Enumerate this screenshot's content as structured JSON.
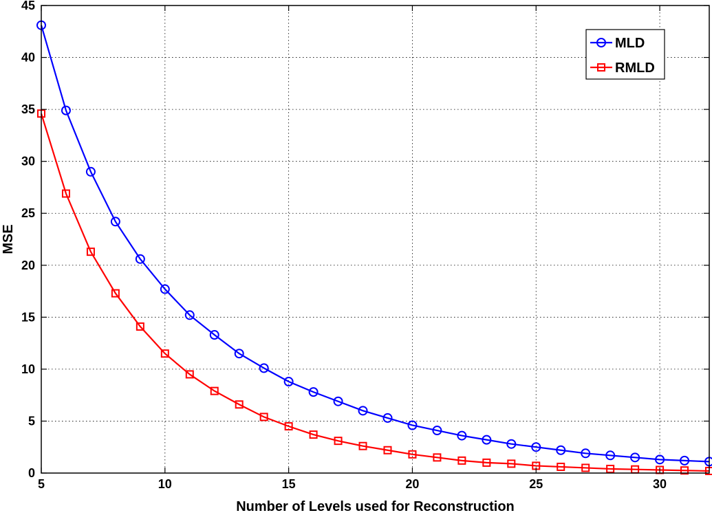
{
  "chart_data": {
    "type": "line",
    "title": "",
    "xlabel": "Number of Levels used for Reconstruction",
    "ylabel": "MSE",
    "xlim": [
      5,
      32
    ],
    "ylim": [
      0,
      45
    ],
    "xticks": [
      5,
      10,
      15,
      20,
      25,
      30
    ],
    "yticks": [
      0,
      5,
      10,
      15,
      20,
      25,
      30,
      35,
      40,
      45
    ],
    "grid": true,
    "legend_position": "top-right",
    "x": [
      5,
      6,
      7,
      8,
      9,
      10,
      11,
      12,
      13,
      14,
      15,
      16,
      17,
      18,
      19,
      20,
      21,
      22,
      23,
      24,
      25,
      26,
      27,
      28,
      29,
      30,
      31,
      32
    ],
    "series": [
      {
        "name": "MLD",
        "color": "#0000ff",
        "marker": "circle",
        "values": [
          43.1,
          34.9,
          29.0,
          24.2,
          20.6,
          17.7,
          15.2,
          13.3,
          11.5,
          10.1,
          8.8,
          7.8,
          6.9,
          6.0,
          5.3,
          4.6,
          4.1,
          3.6,
          3.2,
          2.8,
          2.5,
          2.2,
          1.9,
          1.7,
          1.5,
          1.3,
          1.2,
          1.1
        ]
      },
      {
        "name": "RMLD",
        "color": "#ff0000",
        "marker": "square",
        "values": [
          34.6,
          26.9,
          21.3,
          17.3,
          14.1,
          11.5,
          9.5,
          7.9,
          6.6,
          5.4,
          4.5,
          3.7,
          3.1,
          2.6,
          2.2,
          1.8,
          1.5,
          1.2,
          1.0,
          0.9,
          0.7,
          0.6,
          0.5,
          0.4,
          0.35,
          0.3,
          0.25,
          0.2
        ]
      }
    ]
  }
}
